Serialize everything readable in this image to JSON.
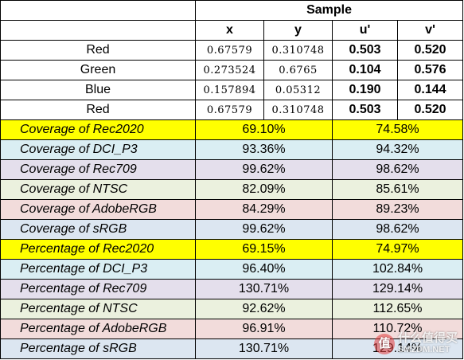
{
  "header": {
    "sample": "Sample",
    "cols": [
      "x",
      "y",
      "u'",
      "v'"
    ]
  },
  "points": [
    {
      "name": "Red",
      "x": "0.67579",
      "y": "0.310748",
      "u": "0.503",
      "v": "0.520"
    },
    {
      "name": "Green",
      "x": "0.273524",
      "y": "0.6765",
      "u": "0.104",
      "v": "0.576"
    },
    {
      "name": "Blue",
      "x": "0.157894",
      "y": "0.05312",
      "u": "0.190",
      "v": "0.144"
    },
    {
      "name": "Red",
      "x": "0.67579",
      "y": "0.310748",
      "u": "0.503",
      "v": "0.520"
    }
  ],
  "metrics": [
    {
      "label": "Coverage of Rec2020",
      "xy": "69.10%",
      "uv": "74.58%",
      "color": "#ffff00"
    },
    {
      "label": "Coverage of DCI_P3",
      "xy": "93.36%",
      "uv": "94.32%",
      "color": "#daeef3"
    },
    {
      "label": "Coverage of Rec709",
      "xy": "99.62%",
      "uv": "98.62%",
      "color": "#e4dfec"
    },
    {
      "label": "Coverage of NTSC",
      "xy": "82.09%",
      "uv": "85.61%",
      "color": "#ebf1de"
    },
    {
      "label": "Coverage of AdobeRGB",
      "xy": "84.29%",
      "uv": "89.23%",
      "color": "#f2dcdb"
    },
    {
      "label": "Coverage of sRGB",
      "xy": "99.62%",
      "uv": "98.62%",
      "color": "#dce6f1"
    },
    {
      "label": "Percentage of Rec2020",
      "xy": "69.15%",
      "uv": "74.97%",
      "color": "#ffff00"
    },
    {
      "label": "Percentage of DCI_P3",
      "xy": "96.40%",
      "uv": "102.84%",
      "color": "#daeef3"
    },
    {
      "label": "Percentage of Rec709",
      "xy": "130.71%",
      "uv": "129.14%",
      "color": "#e4dfec"
    },
    {
      "label": "Percentage of NTSC",
      "xy": "92.62%",
      "uv": "112.65%",
      "color": "#ebf1de"
    },
    {
      "label": "Percentage of AdobeRGB",
      "xy": "96.91%",
      "uv": "110.72%",
      "color": "#f2dcdb"
    },
    {
      "label": "Percentage of sRGB",
      "xy": "130.71%",
      "uv": "129.14%",
      "color": "#dce6f1"
    }
  ],
  "watermark": {
    "logo_char": "值",
    "text": "什么值得买",
    "sub": "SMZDM.NET"
  }
}
